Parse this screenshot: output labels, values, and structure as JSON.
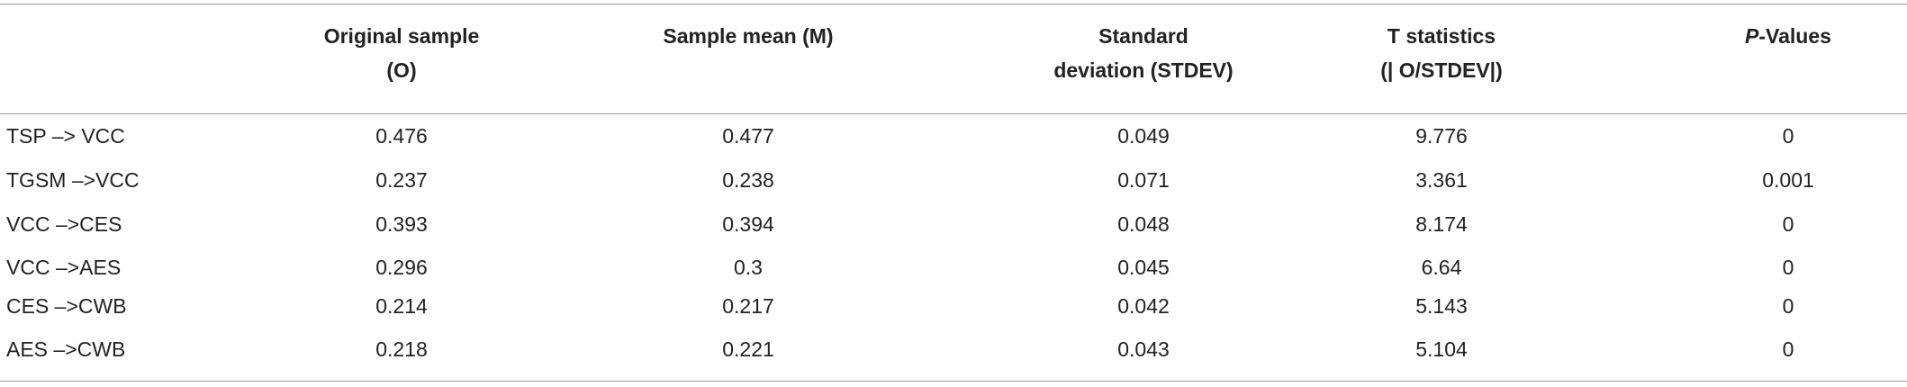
{
  "table": {
    "header": [
      {
        "lines": [
          "Original sample",
          "(O)"
        ]
      },
      {
        "lines": [
          "Sample mean (M)"
        ]
      },
      {
        "lines": [
          "Standard",
          "deviation (STDEV)"
        ]
      },
      {
        "lines": [
          "T statistics",
          "(| O/STDEV|)"
        ]
      },
      {
        "italic": "P",
        "text": "-Values"
      }
    ],
    "rows": [
      [
        "TSP –> VCC",
        0.476,
        0.477,
        0.049,
        9.776,
        0
      ],
      [
        "TGSM –>VCC",
        0.237,
        0.238,
        0.071,
        3.361,
        0.001
      ],
      [
        "VCC –>CES",
        0.393,
        0.394,
        0.048,
        8.174,
        0
      ],
      [
        "VCC –>AES",
        0.296,
        0.3,
        0.045,
        6.64,
        0
      ],
      [
        "CES –>CWB",
        0.214,
        0.217,
        0.042,
        5.143,
        0
      ],
      [
        "AES –>CWB",
        0.218,
        0.221,
        0.043,
        5.104,
        0
      ]
    ]
  }
}
